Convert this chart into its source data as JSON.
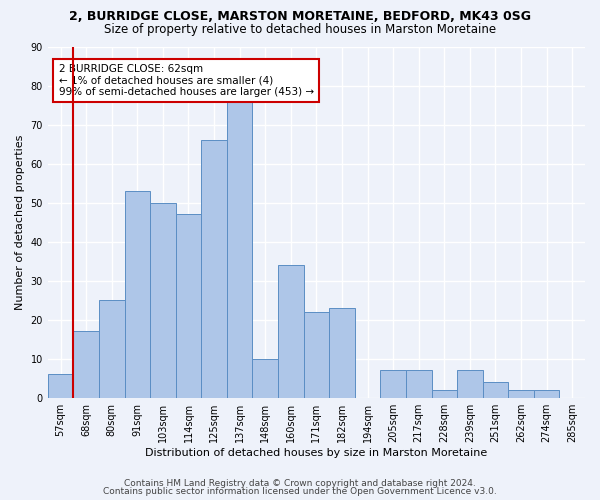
{
  "title": "2, BURRIDGE CLOSE, MARSTON MORETAINE, BEDFORD, MK43 0SG",
  "subtitle": "Size of property relative to detached houses in Marston Moretaine",
  "xlabel": "Distribution of detached houses by size in Marston Moretaine",
  "ylabel": "Number of detached properties",
  "footer1": "Contains HM Land Registry data © Crown copyright and database right 2024.",
  "footer2": "Contains public sector information licensed under the Open Government Licence v3.0.",
  "annotation_line1": "2 BURRIDGE CLOSE: 62sqm",
  "annotation_line2": "← 1% of detached houses are smaller (4)",
  "annotation_line3": "99% of semi-detached houses are larger (453) →",
  "categories": [
    "57sqm",
    "68sqm",
    "80sqm",
    "91sqm",
    "103sqm",
    "114sqm",
    "125sqm",
    "137sqm",
    "148sqm",
    "160sqm",
    "171sqm",
    "182sqm",
    "194sqm",
    "205sqm",
    "217sqm",
    "228sqm",
    "239sqm",
    "251sqm",
    "262sqm",
    "274sqm",
    "285sqm"
  ],
  "values": [
    6,
    17,
    25,
    53,
    50,
    47,
    66,
    76,
    10,
    34,
    22,
    23,
    0,
    7,
    7,
    2,
    7,
    4,
    2,
    2,
    0
  ],
  "bar_color": "#aec6e8",
  "bar_edge_color": "#5b8ec4",
  "vline_x": 0.5,
  "ylim": [
    0,
    90
  ],
  "yticks": [
    0,
    10,
    20,
    30,
    40,
    50,
    60,
    70,
    80,
    90
  ],
  "background_color": "#eef2fa",
  "grid_color": "#ffffff",
  "annotation_box_color": "#ffffff",
  "annotation_box_edge": "#cc0000",
  "vline_color": "#cc0000",
  "title_fontsize": 9,
  "subtitle_fontsize": 8.5,
  "axis_label_fontsize": 8,
  "tick_fontsize": 7,
  "annotation_fontsize": 7.5,
  "footer_fontsize": 6.5
}
